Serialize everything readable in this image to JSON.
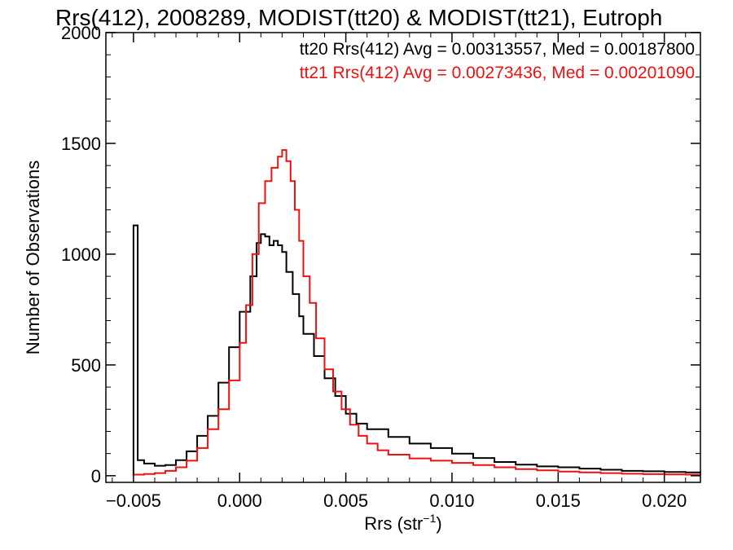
{
  "chart_data": {
    "type": "histogram",
    "title": "Rrs(412), 2008289, MODIST(tt20) & MODIST(tt21), Eutroph",
    "xlabel_base": "Rrs (str",
    "xlabel_sup": "−1",
    "xlabel_close": ")",
    "ylabel": "Number of Observations",
    "xlim": [
      -0.0063,
      0.0217
    ],
    "ylim": [
      -30,
      2000
    ],
    "x_ticks": [
      -0.005,
      0.0,
      0.005,
      0.01,
      0.015,
      0.02
    ],
    "x_tick_labels": [
      "−0.005",
      "0.000",
      "0.005",
      "0.010",
      "0.015",
      "0.020"
    ],
    "y_ticks": [
      0,
      500,
      1000,
      1500,
      2000
    ],
    "y_tick_labels": [
      "0",
      "500",
      "1000",
      "1500",
      "2000"
    ],
    "annotations": [
      {
        "text": "tt20 Rrs(412) Avg = 0.00313557, Med = 0.00187800",
        "color": "#000000"
      },
      {
        "text": "tt21 Rrs(412) Avg = 0.00273436, Med = 0.00201090",
        "color": "#ee1111"
      }
    ],
    "series": [
      {
        "color": "#000000",
        "points": [
          [
            -0.005,
            1130
          ],
          [
            -0.0048,
            70
          ],
          [
            -0.0045,
            55
          ],
          [
            -0.004,
            45
          ],
          [
            -0.0035,
            48
          ],
          [
            -0.003,
            70
          ],
          [
            -0.0025,
            110
          ],
          [
            -0.002,
            180
          ],
          [
            -0.0015,
            270
          ],
          [
            -0.001,
            420
          ],
          [
            -0.0005,
            580
          ],
          [
            0.0,
            740
          ],
          [
            0.0005,
            900
          ],
          [
            0.0008,
            1050
          ],
          [
            0.001,
            1090
          ],
          [
            0.0012,
            1080
          ],
          [
            0.0014,
            1040
          ],
          [
            0.0016,
            1060
          ],
          [
            0.0018,
            1040
          ],
          [
            0.002,
            1010
          ],
          [
            0.0022,
            920
          ],
          [
            0.0025,
            820
          ],
          [
            0.0028,
            720
          ],
          [
            0.003,
            640
          ],
          [
            0.0035,
            540
          ],
          [
            0.004,
            440
          ],
          [
            0.0045,
            360
          ],
          [
            0.005,
            280
          ],
          [
            0.0055,
            235
          ],
          [
            0.006,
            210
          ],
          [
            0.007,
            175
          ],
          [
            0.008,
            145
          ],
          [
            0.009,
            125
          ],
          [
            0.01,
            100
          ],
          [
            0.011,
            80
          ],
          [
            0.012,
            62
          ],
          [
            0.013,
            50
          ],
          [
            0.014,
            42
          ],
          [
            0.015,
            38
          ],
          [
            0.016,
            32
          ],
          [
            0.017,
            27
          ],
          [
            0.018,
            22
          ],
          [
            0.019,
            20
          ],
          [
            0.02,
            17
          ],
          [
            0.021,
            15
          ],
          [
            0.0217,
            13
          ]
        ]
      },
      {
        "color": "#ee1111",
        "points": [
          [
            -0.005,
            5
          ],
          [
            -0.0045,
            8
          ],
          [
            -0.004,
            12
          ],
          [
            -0.0035,
            22
          ],
          [
            -0.003,
            38
          ],
          [
            -0.0025,
            68
          ],
          [
            -0.002,
            125
          ],
          [
            -0.0015,
            210
          ],
          [
            -0.001,
            300
          ],
          [
            -0.0005,
            430
          ],
          [
            0.0,
            600
          ],
          [
            0.0003,
            770
          ],
          [
            0.0006,
            1000
          ],
          [
            0.0009,
            1230
          ],
          [
            0.0012,
            1330
          ],
          [
            0.0015,
            1390
          ],
          [
            0.0018,
            1440
          ],
          [
            0.002,
            1470
          ],
          [
            0.0022,
            1420
          ],
          [
            0.0024,
            1330
          ],
          [
            0.0026,
            1200
          ],
          [
            0.0028,
            1060
          ],
          [
            0.003,
            900
          ],
          [
            0.0033,
            780
          ],
          [
            0.0036,
            620
          ],
          [
            0.004,
            480
          ],
          [
            0.0044,
            380
          ],
          [
            0.0048,
            300
          ],
          [
            0.0052,
            230
          ],
          [
            0.0056,
            180
          ],
          [
            0.006,
            145
          ],
          [
            0.0065,
            115
          ],
          [
            0.007,
            95
          ],
          [
            0.008,
            78
          ],
          [
            0.009,
            68
          ],
          [
            0.01,
            58
          ],
          [
            0.011,
            48
          ],
          [
            0.012,
            38
          ],
          [
            0.013,
            30
          ],
          [
            0.014,
            24
          ],
          [
            0.015,
            19
          ],
          [
            0.016,
            15
          ],
          [
            0.017,
            12
          ],
          [
            0.018,
            9
          ],
          [
            0.019,
            7
          ],
          [
            0.02,
            6
          ],
          [
            0.021,
            5
          ],
          [
            0.0217,
            4
          ]
        ]
      }
    ]
  }
}
